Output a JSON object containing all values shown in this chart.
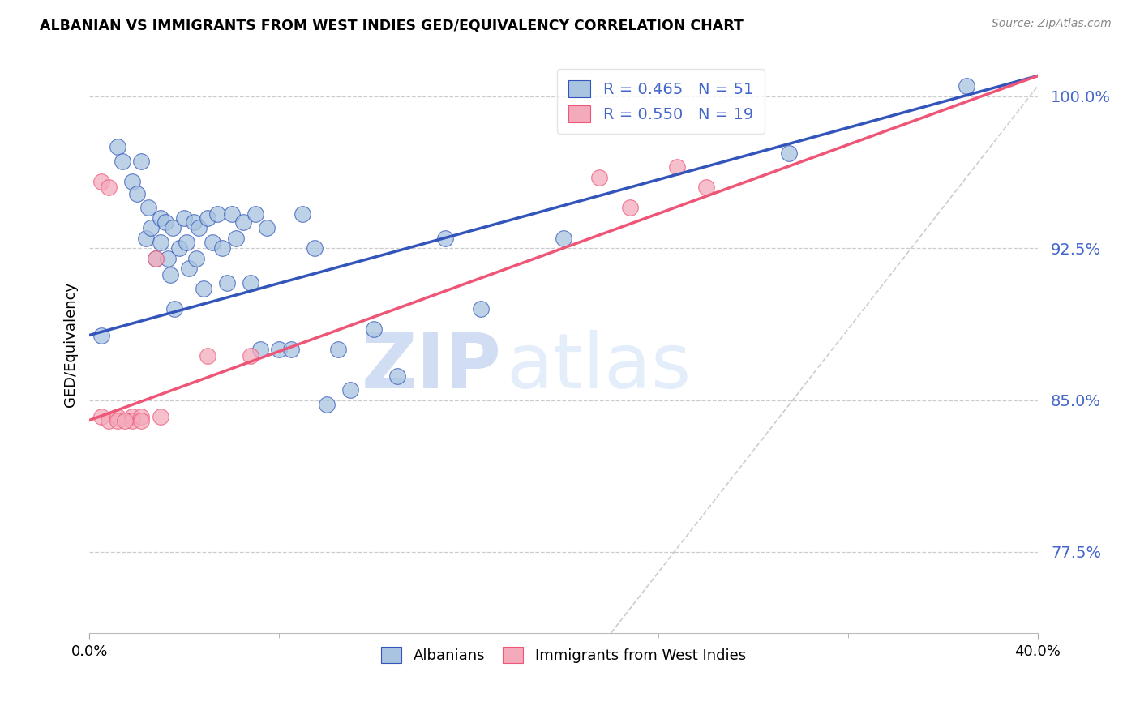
{
  "title": "ALBANIAN VS IMMIGRANTS FROM WEST INDIES GED/EQUIVALENCY CORRELATION CHART",
  "source": "Source: ZipAtlas.com",
  "xlabel_bottom": "Albanians",
  "xlabel_right": "Immigrants from West Indies",
  "ylabel": "GED/Equivalency",
  "xmin": 0.0,
  "xmax": 0.4,
  "ymin": 0.735,
  "ymax": 1.02,
  "yticks": [
    0.775,
    0.85,
    0.925,
    1.0
  ],
  "ytick_labels": [
    "77.5%",
    "85.0%",
    "92.5%",
    "100.0%"
  ],
  "legend_blue_label": "R = 0.465   N = 51",
  "legend_pink_label": "R = 0.550   N = 19",
  "blue_color": "#A8C4E0",
  "pink_color": "#F4AABB",
  "blue_line_color": "#3355BB",
  "pink_line_color": "#EE5577",
  "watermark_zip": "ZIP",
  "watermark_atlas": "atlas",
  "blue_scatter_x": [
    0.005,
    0.012,
    0.014,
    0.018,
    0.02,
    0.022,
    0.024,
    0.025,
    0.026,
    0.028,
    0.03,
    0.03,
    0.032,
    0.033,
    0.034,
    0.035,
    0.036,
    0.038,
    0.04,
    0.041,
    0.042,
    0.044,
    0.045,
    0.046,
    0.048,
    0.05,
    0.052,
    0.054,
    0.056,
    0.058,
    0.06,
    0.062,
    0.065,
    0.068,
    0.07,
    0.072,
    0.075,
    0.08,
    0.085,
    0.09,
    0.095,
    0.1,
    0.105,
    0.11,
    0.12,
    0.13,
    0.15,
    0.165,
    0.2,
    0.295,
    0.37
  ],
  "blue_scatter_y": [
    0.882,
    0.975,
    0.968,
    0.958,
    0.952,
    0.968,
    0.93,
    0.945,
    0.935,
    0.92,
    0.94,
    0.928,
    0.938,
    0.92,
    0.912,
    0.935,
    0.895,
    0.925,
    0.94,
    0.928,
    0.915,
    0.938,
    0.92,
    0.935,
    0.905,
    0.94,
    0.928,
    0.942,
    0.925,
    0.908,
    0.942,
    0.93,
    0.938,
    0.908,
    0.942,
    0.875,
    0.935,
    0.875,
    0.875,
    0.942,
    0.925,
    0.848,
    0.875,
    0.855,
    0.885,
    0.862,
    0.93,
    0.895,
    0.93,
    0.972,
    1.005
  ],
  "pink_scatter_x": [
    0.005,
    0.008,
    0.012,
    0.018,
    0.018,
    0.022,
    0.022,
    0.028,
    0.03,
    0.05,
    0.068,
    0.215,
    0.228,
    0.248,
    0.26,
    0.005,
    0.008,
    0.012,
    0.015
  ],
  "pink_scatter_y": [
    0.842,
    0.84,
    0.842,
    0.842,
    0.84,
    0.842,
    0.84,
    0.92,
    0.842,
    0.872,
    0.872,
    0.96,
    0.945,
    0.965,
    0.955,
    0.958,
    0.955,
    0.84,
    0.84
  ],
  "blue_line_x0": 0.0,
  "blue_line_y0": 0.882,
  "blue_line_x1": 0.4,
  "blue_line_y1": 1.01,
  "pink_line_x0": 0.0,
  "pink_line_y0": 0.84,
  "pink_line_x1": 0.4,
  "pink_line_y1": 1.01,
  "ref_line_x0": 0.22,
  "ref_line_y0": 0.735,
  "ref_line_x1": 0.4,
  "ref_line_y1": 1.005
}
